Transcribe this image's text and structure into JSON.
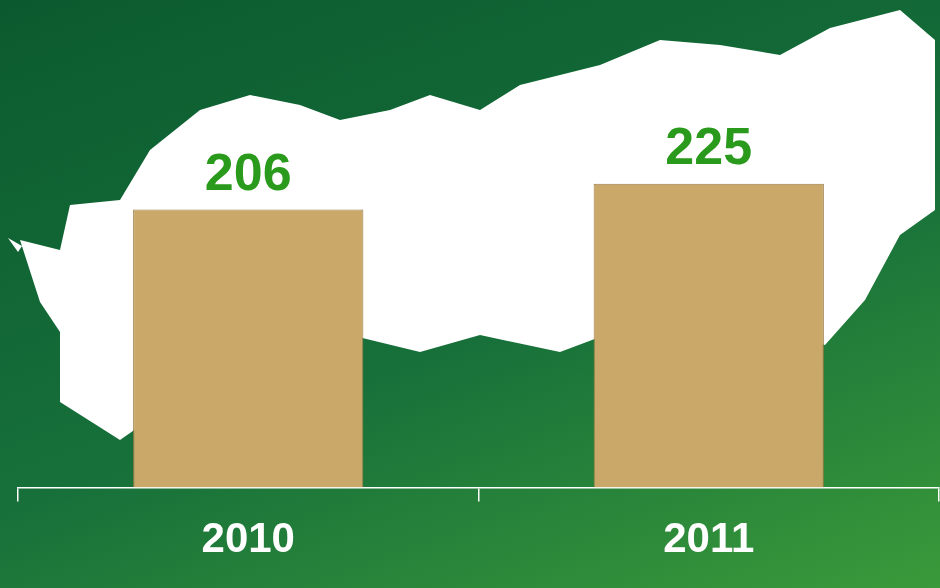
{
  "chart_data": {
    "type": "bar",
    "categories": [
      "2010",
      "2011"
    ],
    "values": [
      206,
      225
    ],
    "color": "#c9a86a",
    "data_labels": true,
    "tick_labels": "x",
    "grid": false
  }
}
